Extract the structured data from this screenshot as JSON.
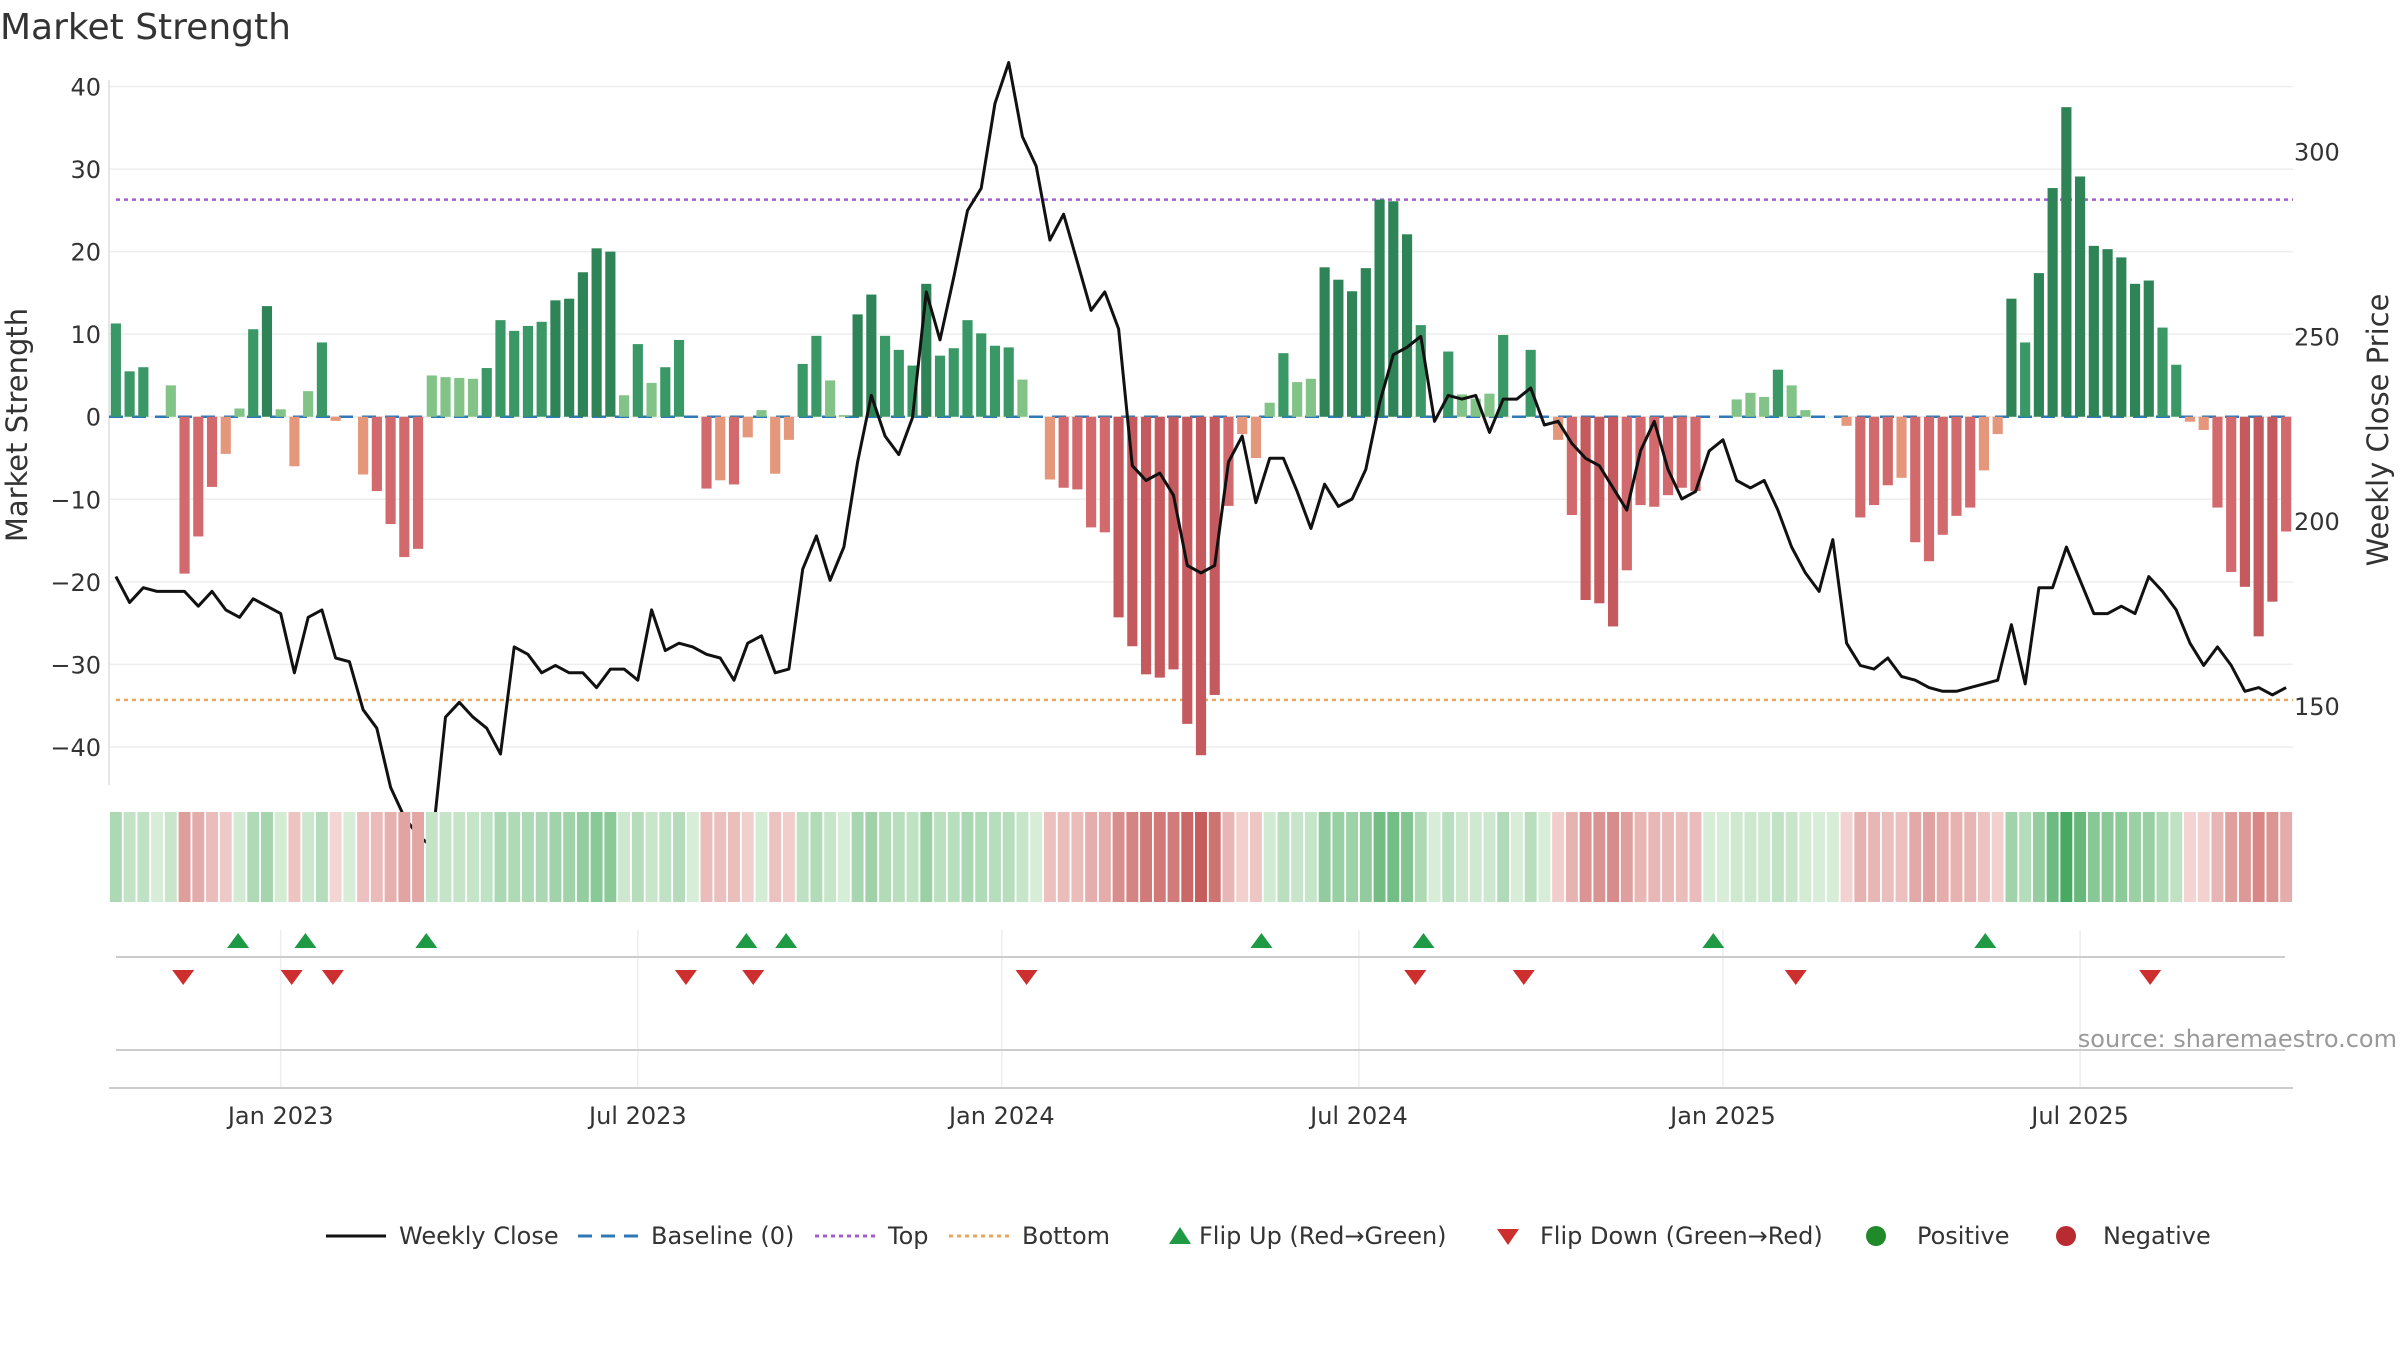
{
  "chart_data": {
    "type": "bar",
    "title": "Market Strength",
    "ylabel": "Market Strength",
    "y2label": "Weekly Close Price",
    "ylim": [
      -44,
      42
    ],
    "y2lim": [
      130,
      322
    ],
    "yticks": [
      40,
      30,
      20,
      10,
      0,
      -10,
      -20,
      -30,
      -40
    ],
    "yticklabels": [
      "40",
      "30",
      "20",
      "10",
      "0",
      "−10",
      "−20",
      "−30",
      "−40"
    ],
    "y2ticks": [
      300,
      250,
      200,
      150
    ],
    "y2ticklabels": [
      "300",
      "250",
      "200",
      "150"
    ],
    "top_level": 26.3,
    "bottom_level": -34.3,
    "baseline_level": 0,
    "x_time_labels": [
      "Jan 2023",
      "Jul 2023",
      "Jan 2024",
      "Jul 2024",
      "Jan 2025",
      "Jul 2025"
    ],
    "x_time_label_weeks": [
      12,
      38,
      64.5,
      90.5,
      117,
      143
    ],
    "strength": [
      11.3,
      5.5,
      6,
      0,
      3.8,
      -19,
      -14.5,
      -8.5,
      -4.5,
      1,
      10.6,
      13.4,
      0.9,
      -6,
      3.1,
      9,
      -0.5,
      0,
      -7,
      -9,
      -13,
      -17,
      -16,
      5,
      4.8,
      4.7,
      4.6,
      5.9,
      11.7,
      10.4,
      11,
      11.5,
      14.1,
      14.3,
      17.5,
      20.4,
      20,
      2.6,
      8.8,
      4.1,
      6,
      9.3,
      0,
      -8.7,
      -7.7,
      -8.2,
      -2.5,
      0.8,
      -6.9,
      -2.8,
      6.4,
      9.8,
      4.4,
      0.2,
      12.4,
      14.8,
      9.8,
      8.1,
      6.2,
      16.1,
      7.4,
      8.3,
      11.7,
      10.1,
      8.6,
      8.4,
      4.5,
      0,
      -7.6,
      -8.6,
      -8.8,
      -13.4,
      -14,
      -24.3,
      -27.8,
      -31.2,
      -31.6,
      -30.6,
      -37.2,
      -41,
      -33.7,
      -10.8,
      -2.1,
      -5,
      1.7,
      7.7,
      4.2,
      4.6,
      18.1,
      16.6,
      15.2,
      18,
      26.3,
      26.1,
      22.1,
      11.1,
      0,
      7.9,
      2.7,
      2.2,
      2.8,
      9.9,
      0,
      8.1,
      0,
      -2.8,
      -11.9,
      -22.2,
      -22.6,
      -25.4,
      -18.6,
      -10.7,
      -10.9,
      -9.5,
      -8.6,
      -9,
      0,
      0,
      2.1,
      2.9,
      2.4,
      5.7,
      3.8,
      0.8,
      0,
      0,
      -1.1,
      -12.2,
      -10.7,
      -8.3,
      -7.4,
      -15.2,
      -17.5,
      -14.3,
      -12,
      -11,
      -6.5,
      -2.1,
      14.3,
      9,
      17.4,
      27.7,
      37.5,
      29.1,
      20.7,
      20.3,
      19.3,
      16.1,
      16.5,
      10.8,
      6.3,
      -0.6,
      -1.6,
      -11,
      -18.8,
      -20.6,
      -26.6,
      -22.4,
      -13.9
    ],
    "weekly_close": [
      185,
      178,
      182,
      181,
      181,
      181,
      177,
      181,
      176,
      174,
      179,
      177,
      175,
      159,
      174,
      176,
      163,
      162,
      149,
      144,
      128,
      120,
      115,
      112,
      147,
      151,
      147,
      144,
      137,
      166,
      164,
      159,
      161,
      159,
      159,
      155,
      160,
      160,
      157,
      176,
      165,
      167,
      166,
      164,
      163,
      157,
      167,
      169,
      159,
      160,
      187,
      196,
      184,
      193,
      216,
      234,
      223,
      218,
      228,
      262,
      249,
      266,
      284,
      290,
      313,
      324,
      304,
      296,
      276,
      283,
      270,
      257,
      262,
      252,
      215,
      211,
      213,
      207,
      188,
      186,
      188,
      216,
      223,
      205,
      217,
      217,
      208,
      198,
      210,
      204,
      206,
      214,
      232,
      245,
      247,
      250,
      227,
      234,
      233,
      234,
      224,
      233,
      233,
      236,
      226,
      227,
      221,
      217,
      215,
      209,
      203,
      219,
      227,
      214,
      206,
      208,
      219,
      222,
      211,
      209,
      211,
      203,
      193,
      186,
      181,
      195,
      167,
      161,
      160,
      163,
      158,
      157,
      155,
      154,
      154,
      155,
      156,
      157,
      172,
      156,
      182,
      182,
      193,
      184,
      175,
      175,
      177,
      175,
      185,
      181,
      176,
      167,
      161,
      166,
      161,
      154,
      155,
      153,
      155
    ],
    "flip_up_weeks": [
      8.9,
      13.8,
      22.6,
      45.9,
      48.8,
      83.4,
      95.2,
      116.3,
      136.1
    ],
    "flip_down_weeks": [
      4.9,
      12.8,
      15.8,
      41.5,
      46.4,
      66.3,
      94.6,
      102.5,
      122.3,
      148.1
    ],
    "series_colors": {
      "pos_strong": "#2e8456",
      "pos_mid": "#3a9866",
      "pos_light": "#82c487",
      "neg_strong": "#c55a5e",
      "neg_mid": "#d2696c",
      "neg_light": "#e5977c",
      "weekly_close": "#111111",
      "baseline": "#2f79b7",
      "top": "#a25dce",
      "bottom": "#e8a85f",
      "flip_up": "#1f9a44",
      "flip_down": "#cc2f2d",
      "positive": "#208a2a",
      "negative": "#b72b31"
    },
    "legend": [
      {
        "label": "Weekly Close",
        "kind": "line"
      },
      {
        "label": "Baseline (0)",
        "kind": "dash"
      },
      {
        "label": "Top",
        "kind": "dot-purple"
      },
      {
        "label": "Bottom",
        "kind": "dot-orange"
      },
      {
        "label": "Flip Up (Red→Green)",
        "kind": "tri-up"
      },
      {
        "label": "Flip Down (Green→Red)",
        "kind": "tri-down"
      },
      {
        "label": "Positive",
        "kind": "dot-green"
      },
      {
        "label": "Negative",
        "kind": "dot-red"
      }
    ]
  },
  "source": "source: sharemaestro.com"
}
